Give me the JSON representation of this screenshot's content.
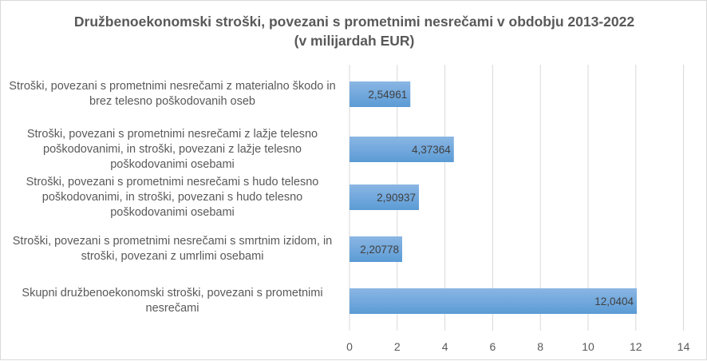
{
  "chart_data": {
    "type": "bar",
    "orientation": "horizontal",
    "title": "Družbenoekonomski stroški, povezani s prometnimi nesrečami v obdobju 2013-2022",
    "subtitle": "(v milijardah EUR)",
    "categories": [
      "Stroški, povezani s prometnimi nesrečami z materialno škodo in brez telesno poškodovanih oseb",
      "Stroški, povezani s prometnimi nesrečami z lažje telesno poškodovanimi, in stroški, povezani z lažje telesno poškodovanimi osebami",
      "Stroški, povezani s prometnimi nesrečami s hudo telesno poškodovanimi, in stroški, povezani s hudo telesno poškodovanimi osebami",
      "Stroški, povezani s prometnimi nesrečami s smrtnim izidom, in stroški, povezani z umrlimi osebami",
      "Skupni družbenoekonomski stroški, povezani s prometnimi nesrečami"
    ],
    "category_lines": [
      [
        "Stroški, povezani s prometnimi nesrečami z materialno škodo in",
        "brez telesno poškodovanih oseb"
      ],
      [
        "Stroški, povezani s prometnimi nesrečami z lažje telesno",
        "poškodovanimi, in stroški, povezani z lažje telesno",
        "poškodovanimi osebami"
      ],
      [
        "Stroški, povezani s prometnimi nesrečami s hudo telesno",
        "poškodovanimi, in stroški, povezani s hudo telesno",
        "poškodovanimi osebami"
      ],
      [
        "Stroški, povezani s prometnimi nesrečami s smrtnim izidom, in",
        "stroški, povezani z umrlimi osebami"
      ],
      [
        "Skupni družbenoekonomski stroški, povezani s prometnimi",
        "nesrečami"
      ]
    ],
    "values": [
      2.54961,
      4.37364,
      2.90937,
      2.20778,
      12.0404
    ],
    "data_labels": [
      "2,54961",
      "4,37364",
      "2,90937",
      "2,20778",
      "12,0404"
    ],
    "xlim": [
      0,
      14
    ],
    "xticks": [
      0,
      2,
      4,
      6,
      8,
      10,
      12,
      14
    ],
    "xtick_labels": [
      "0",
      "2",
      "4",
      "6",
      "8",
      "10",
      "12",
      "14"
    ],
    "grid": true,
    "legend": "none",
    "bar_color": "#5b9bd5",
    "bar_color_light": "#8ab6e4",
    "grid_color": "#d9d9d9"
  }
}
